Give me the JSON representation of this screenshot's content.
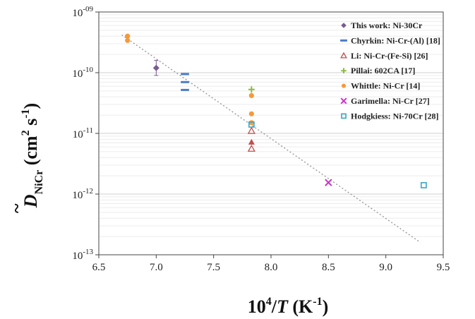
{
  "chart_data": {
    "type": "scatter",
    "title": "",
    "xlabel_parts": {
      "base": "10",
      "sup": "4",
      "slash": "/",
      "var": "T",
      "unit_open": " (K",
      "unit_sup": "-1",
      "unit_close": ")"
    },
    "ylabel_parts": {
      "tilde": "~",
      "var": "D",
      "sub": "NiCr",
      "unit_open": " (cm",
      "sup2": "2",
      "mid": " s",
      "sup_m1": "-1",
      "unit_close": ")"
    },
    "xlim": [
      6.5,
      9.5
    ],
    "ylim": [
      1e-13,
      1e-09
    ],
    "yscale": "log",
    "x_ticks": [
      "6.5",
      "7.0",
      "7.5",
      "8.0",
      "8.5",
      "9.0",
      "9.5"
    ],
    "x_tick_values": [
      6.5,
      7.0,
      7.5,
      8.0,
      8.5,
      9.0,
      9.5
    ],
    "y_ticks": [
      {
        "base": "10",
        "exp": "-09",
        "value": 1e-09
      },
      {
        "base": "10",
        "exp": "-10",
        "value": 1e-10
      },
      {
        "base": "10",
        "exp": "-11",
        "value": 1e-11
      },
      {
        "base": "10",
        "exp": "-12",
        "value": 1e-12
      },
      {
        "base": "10",
        "exp": "-13",
        "value": 1e-13
      }
    ],
    "grid": "minor horizontal",
    "legend_position": "top-right",
    "fit_line": {
      "style": "dotted",
      "color": "#999999",
      "x": [
        6.7,
        9.3
      ],
      "y": [
        4.2e-10,
        1.6e-13
      ]
    },
    "series": [
      {
        "name": "This work: Ni-30Cr",
        "marker": "diamond",
        "color": "#7a5c8f",
        "points": [
          {
            "x": 7.0,
            "y": 1.2e-10,
            "yerr_low": 9e-11,
            "yerr_high": 1.6e-10
          }
        ]
      },
      {
        "name": "Chyrkin: Ni-Cr-(Al) [18]",
        "marker": "dash",
        "color": "#4a7ec7",
        "points": [
          {
            "x": 7.25,
            "y": 9.5e-11
          },
          {
            "x": 7.25,
            "y": 7e-11
          },
          {
            "x": 7.25,
            "y": 5.2e-11
          }
        ]
      },
      {
        "name": "Li: Ni-Cr-(Fe-Si) [26]",
        "marker": "triangle-open",
        "color": "#c0504d",
        "points": [
          {
            "x": 7.83,
            "y": 1.1e-11
          },
          {
            "x": 7.83,
            "y": 5.6e-12
          }
        ]
      },
      {
        "name": "",
        "marker": "triangle-filled",
        "color": "#c0504d",
        "points": [
          {
            "x": 7.83,
            "y": 7.2e-12
          }
        ]
      },
      {
        "name": "Pillai: 602CA [17]",
        "marker": "plus",
        "color": "#8dbb3c",
        "points": [
          {
            "x": 7.83,
            "y": 5.3e-11
          }
        ]
      },
      {
        "name": "Whittle: Ni-Cr [14]",
        "marker": "circle",
        "color": "#f59a3c",
        "points": [
          {
            "x": 6.75,
            "y": 4e-10
          },
          {
            "x": 6.75,
            "y": 3.4e-10
          },
          {
            "x": 7.83,
            "y": 4.2e-11
          },
          {
            "x": 7.83,
            "y": 2.1e-11
          },
          {
            "x": 7.83,
            "y": 1.5e-11
          }
        ]
      },
      {
        "name": "Garimella: Ni-Cr [27]",
        "marker": "x",
        "color": "#cc33cc",
        "points": [
          {
            "x": 8.5,
            "y": 1.55e-12
          }
        ]
      },
      {
        "name": "Hodgkiess: Ni-70Cr [28]",
        "marker": "square-open",
        "color": "#3aa6c6",
        "points": [
          {
            "x": 7.83,
            "y": 1.4e-11
          },
          {
            "x": 9.33,
            "y": 1.4e-12
          }
        ]
      }
    ]
  }
}
